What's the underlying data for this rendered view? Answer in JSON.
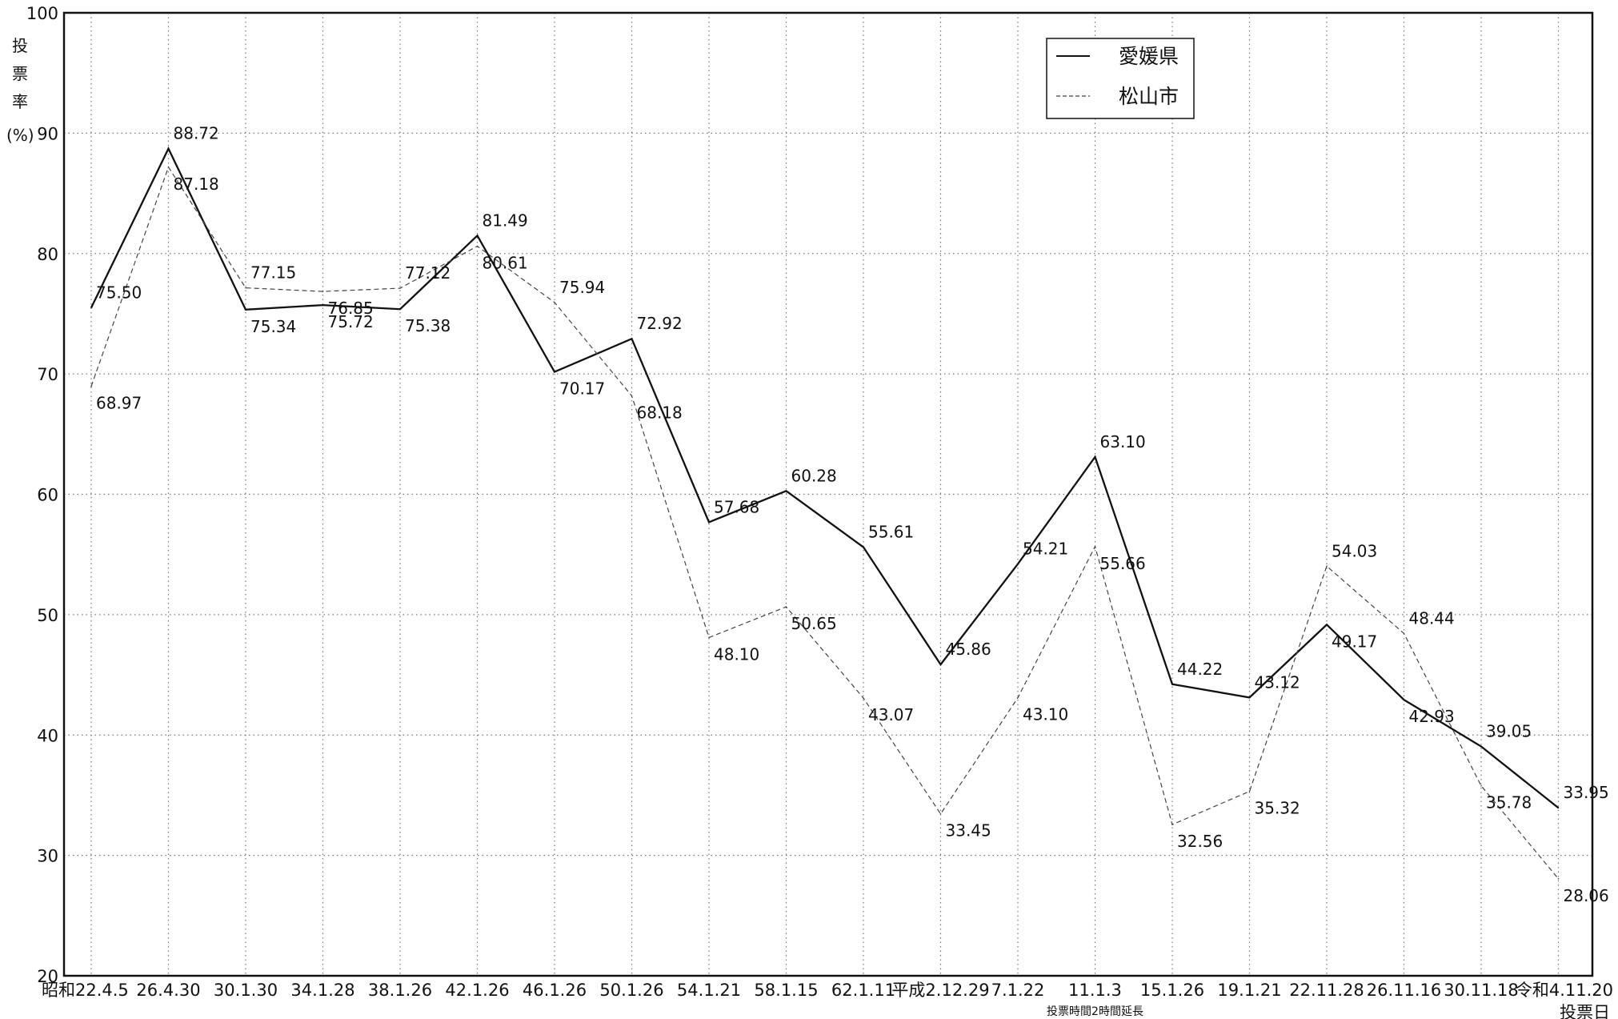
{
  "chart_data": {
    "type": "line",
    "ylabel_chars": [
      "投",
      "票",
      "率"
    ],
    "yunit": "(%)",
    "ylim": [
      20,
      100
    ],
    "yticks": [
      20,
      30,
      40,
      50,
      60,
      70,
      80,
      90,
      100
    ],
    "grid": true,
    "legend_position": "top-right",
    "x_end_label": "投票日",
    "note": "投票時間2時間延長",
    "note_index": 13,
    "categories": [
      "昭和22.4.5",
      "26.4.30",
      "30.1.30",
      "34.1.28",
      "38.1.26",
      "42.1.26",
      "46.1.26",
      "50.1.26",
      "54.1.21",
      "58.1.15",
      "62.1.11",
      "平成2.12.29",
      "7.1.22",
      "11.1.3",
      "15.1.26",
      "19.1.21",
      "22.11.28",
      "26.11.16",
      "30.11.18",
      "令和4.11.20"
    ],
    "series": [
      {
        "name": "愛媛県",
        "style": "solid",
        "color": "#111111",
        "values": [
          75.5,
          88.72,
          75.34,
          75.72,
          75.38,
          81.49,
          70.17,
          72.92,
          57.68,
          60.28,
          55.61,
          45.86,
          54.21,
          63.1,
          44.22,
          43.12,
          49.17,
          42.93,
          39.05,
          33.95
        ],
        "labels": [
          "75.50",
          "88.72",
          "75.34",
          "75.72",
          "75.38",
          "81.49",
          "70.17",
          "72.92",
          "57.68",
          "60.28",
          "55.61",
          "45.86",
          "54.21",
          "63.10",
          "44.22",
          "43.12",
          "49.17",
          "42.93",
          "39.05",
          "33.95"
        ]
      },
      {
        "name": "松山市",
        "style": "dashed",
        "color": "#444444",
        "values": [
          68.97,
          87.18,
          77.15,
          76.85,
          77.12,
          80.61,
          75.94,
          68.18,
          48.1,
          50.65,
          43.07,
          33.45,
          43.1,
          55.66,
          32.56,
          35.32,
          54.03,
          48.44,
          35.78,
          28.06
        ],
        "labels": [
          "68.97",
          "87.18",
          "77.15",
          "76.85",
          "77.12",
          "80.61",
          "75.94",
          "68.18",
          "48.10",
          "50.65",
          "43.07",
          "33.45",
          "43.10",
          "55.66",
          "32.56",
          "35.32",
          "54.03",
          "48.44",
          "35.78",
          "28.06"
        ]
      }
    ]
  }
}
